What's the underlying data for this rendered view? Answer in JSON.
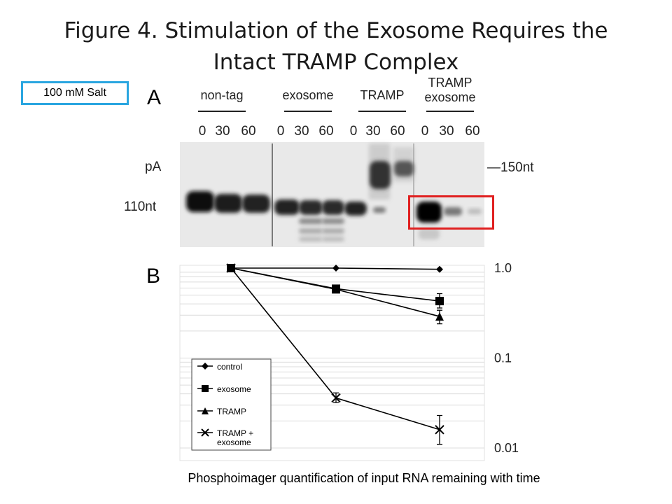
{
  "title_line1": "Figure 4. Stimulation of the Exosome Requires the",
  "title_line2": "Intact TRAMP Complex",
  "salt_label": "100 mM Salt",
  "caption": "Phosphoimager quantification of input RNA remaining with time",
  "panel_a": {
    "letter": "A",
    "groups": [
      {
        "label_lines": [
          "non-tag"
        ],
        "times": [
          "0",
          "30",
          "60"
        ]
      },
      {
        "label_lines": [
          "exosome"
        ],
        "times": [
          "0",
          "30",
          "60"
        ]
      },
      {
        "label_lines": [
          "TRAMP"
        ],
        "times": [
          "0",
          "30",
          "60"
        ]
      },
      {
        "label_lines": [
          "TRAMP",
          "exosome"
        ],
        "times": [
          "0",
          "30",
          "60"
        ]
      }
    ],
    "left_labels": [
      "pA",
      "110nt"
    ],
    "right_label": "—150nt"
  },
  "chart_data": {
    "type": "line",
    "panel_letter": "B",
    "x": [
      0,
      30,
      60
    ],
    "y_scale": "log",
    "ylim": [
      0.01,
      1.0
    ],
    "y_ticks": [
      "1.0",
      "0.1",
      "0.01"
    ],
    "grid": true,
    "legend_position": "bottom-left",
    "series": [
      {
        "name": "control",
        "marker": "diamond",
        "values": [
          1.0,
          1.0,
          0.97
        ]
      },
      {
        "name": "exosome",
        "marker": "square",
        "values": [
          1.0,
          0.59,
          0.43
        ]
      },
      {
        "name": "TRAMP",
        "marker": "triangle",
        "values": [
          1.0,
          0.58,
          0.29
        ]
      },
      {
        "name": "TRAMP + exosome",
        "legend_lines": [
          "TRAMP +",
          "exosome"
        ],
        "marker": "x",
        "values": [
          1.0,
          0.036,
          0.016
        ]
      }
    ]
  }
}
